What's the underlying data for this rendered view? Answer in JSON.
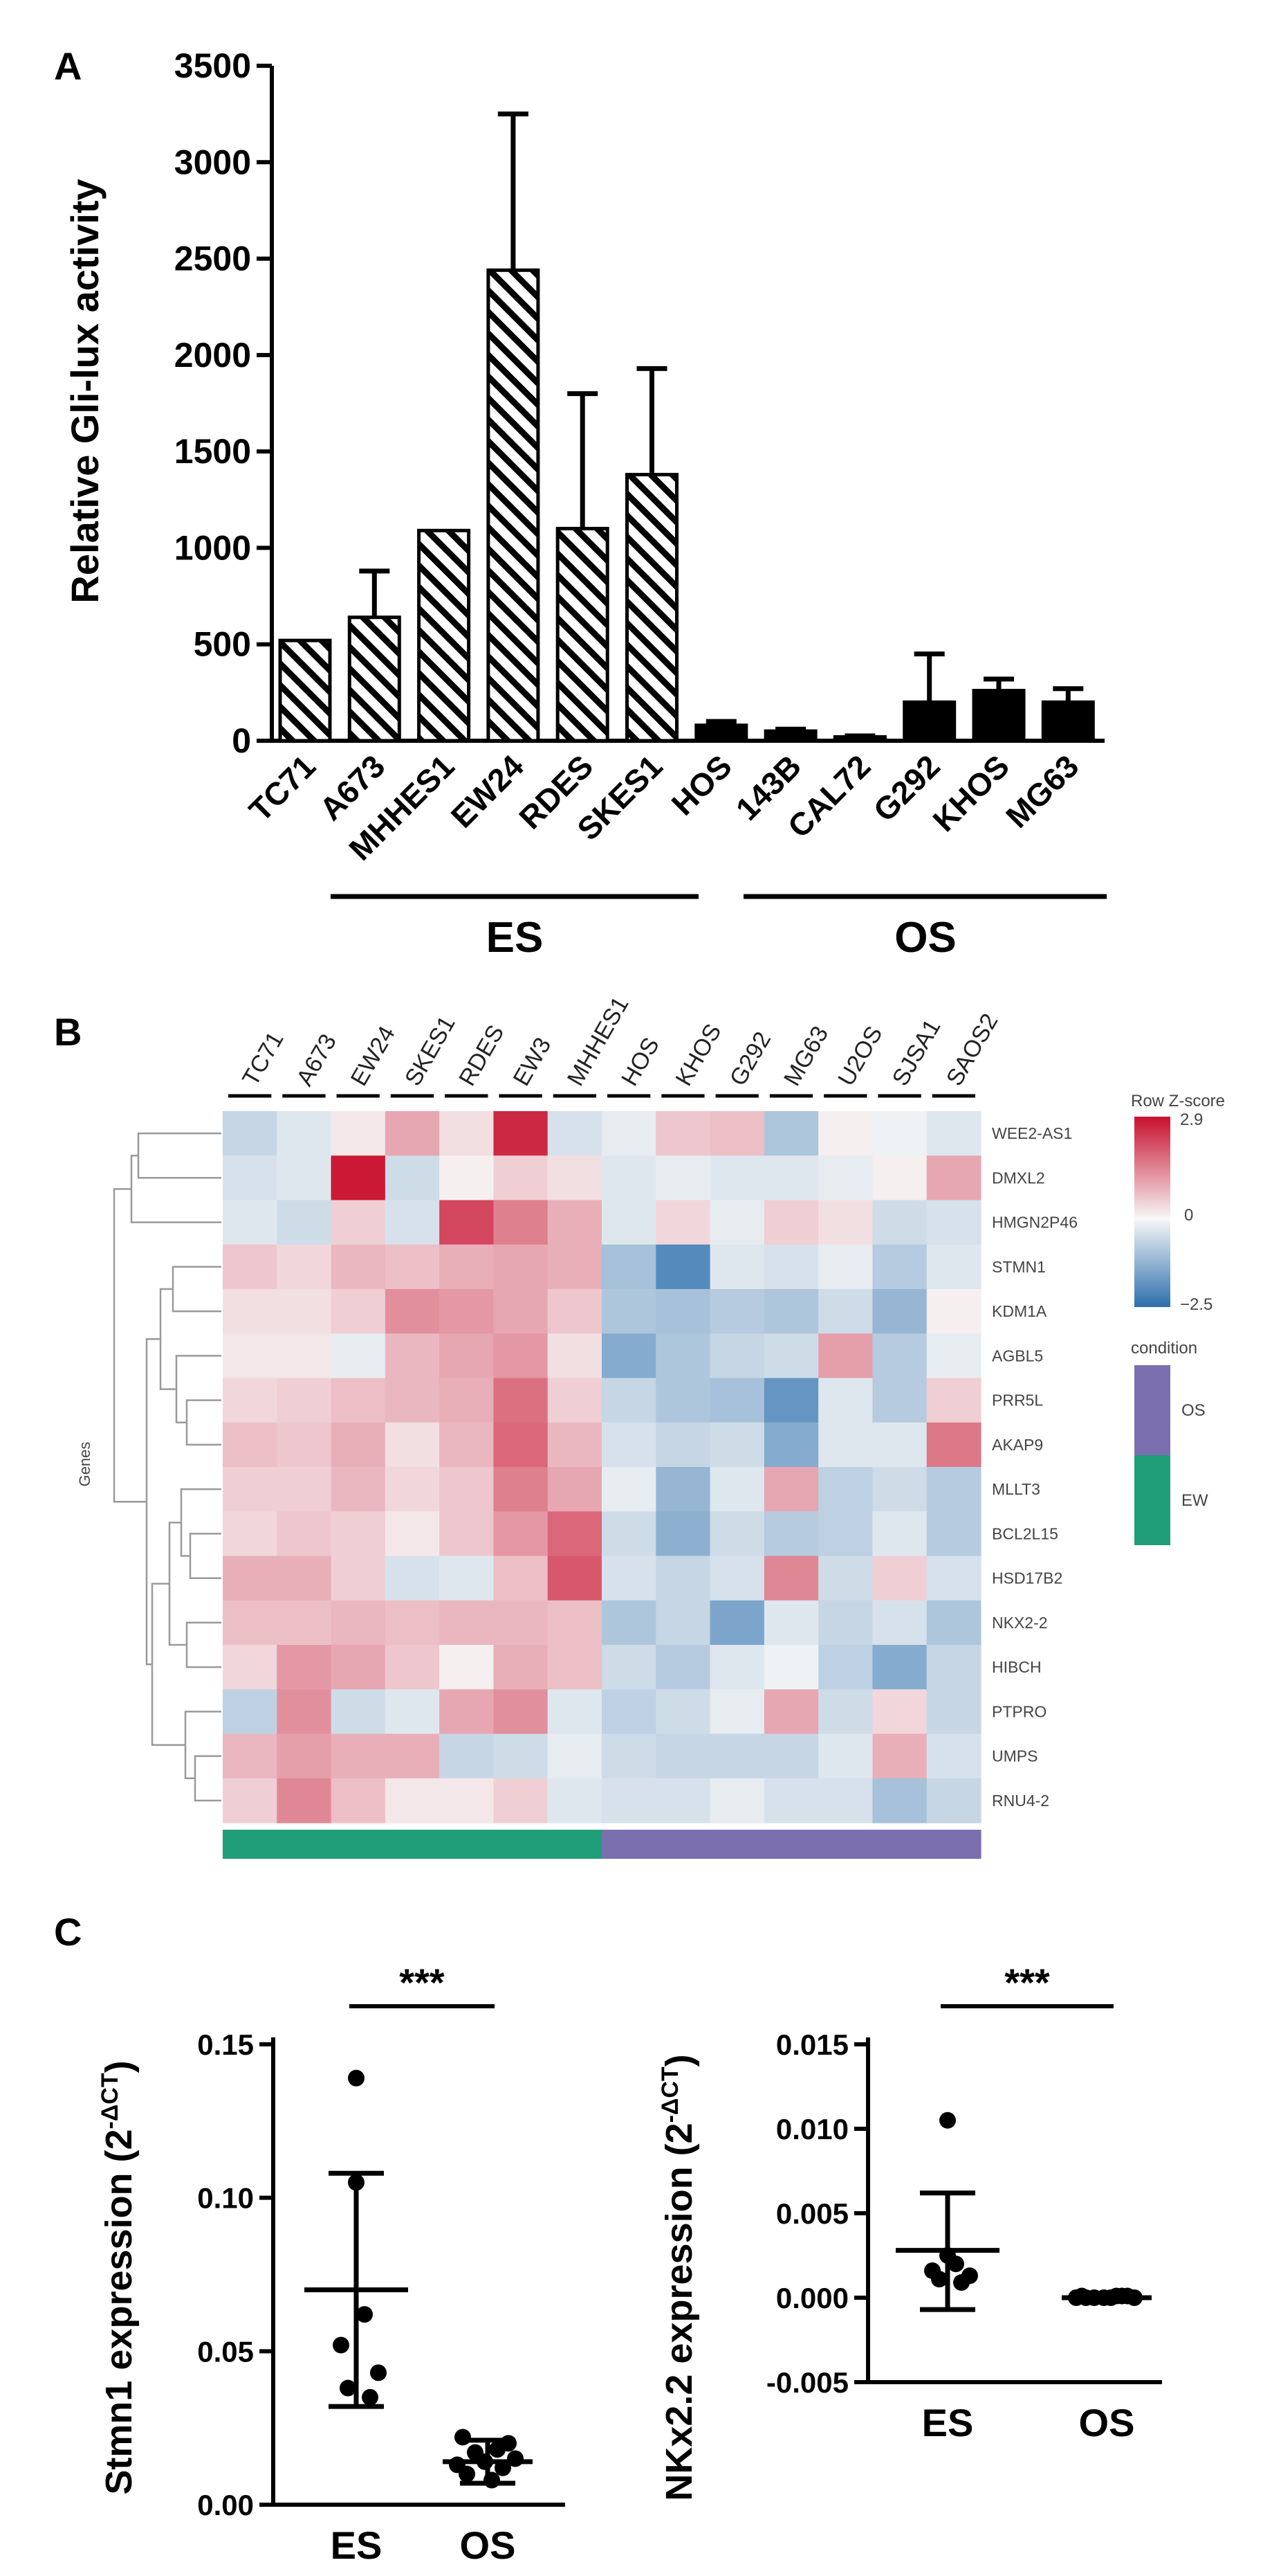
{
  "panel_labels": [
    "A",
    "B",
    "C"
  ],
  "chart_data": [
    {
      "type": "bar",
      "panel": "A",
      "title": "",
      "xlabel": "",
      "ylabel": "Relative Gli-lux activity",
      "ylim": [
        0,
        3500
      ],
      "yticks": [
        0,
        500,
        1000,
        1500,
        2000,
        2500,
        3000,
        3500
      ],
      "ytick_labels": [
        "0",
        "500",
        "1000",
        "1500",
        "2000",
        "2500",
        "3000",
        "3500"
      ],
      "categories": [
        "TC71",
        "A673",
        "MHHES1",
        "EW24",
        "RDES",
        "SKES1",
        "HOS",
        "143B",
        "CAL72",
        "G292",
        "KHOS",
        "MG63"
      ],
      "values": [
        520,
        640,
        1090,
        2440,
        1100,
        1380,
        80,
        50,
        20,
        200,
        260,
        200
      ],
      "error_upper": [
        0,
        240,
        0,
        810,
        700,
        550,
        20,
        10,
        5,
        250,
        60,
        70
      ],
      "group": [
        "ES",
        "ES",
        "ES",
        "ES",
        "ES",
        "ES",
        "OS",
        "OS",
        "OS",
        "OS",
        "OS",
        "OS"
      ],
      "group_labels": [
        "ES",
        "OS"
      ],
      "style": {
        "ES": "hatched",
        "OS": "solid"
      }
    },
    {
      "type": "heatmap",
      "panel": "B",
      "columns": [
        "TC71",
        "A673",
        "EW24",
        "SKES1",
        "RDES",
        "EW3",
        "MHHES1",
        "HOS",
        "KHOS",
        "G292",
        "MG63",
        "U2OS",
        "SJSA1",
        "SAOS2"
      ],
      "rows": [
        "WEE2-AS1",
        "DMXL2",
        "HMGN2P46",
        "STMN1",
        "KDM1A",
        "AGBL5",
        "PRR5L",
        "AKAP9",
        "MLLT3",
        "BCL2L15",
        "HSD17B2",
        "NKX2-2",
        "HIBCH",
        "PTPRO",
        "UMPS",
        "RNU4-2"
      ],
      "row_axis_label": "Genes",
      "values": [
        [
          -0.6,
          -0.3,
          0.2,
          1.0,
          0.3,
          2.6,
          -0.4,
          -0.2,
          0.6,
          0.7,
          -0.9,
          0.1,
          -0.1,
          -0.3
        ],
        [
          -0.4,
          -0.3,
          2.8,
          -0.5,
          0.1,
          0.5,
          0.3,
          -0.3,
          -0.2,
          -0.3,
          -0.3,
          -0.2,
          0.1,
          1.0
        ],
        [
          -0.3,
          -0.5,
          0.5,
          -0.4,
          2.2,
          1.5,
          0.9,
          -0.3,
          0.4,
          -0.2,
          0.5,
          0.3,
          -0.5,
          -0.4
        ],
        [
          0.6,
          0.4,
          0.8,
          0.7,
          0.9,
          1.0,
          0.9,
          -1.0,
          -2.0,
          -0.3,
          -0.4,
          -0.2,
          -0.8,
          -0.3
        ],
        [
          0.3,
          0.3,
          0.5,
          1.3,
          1.2,
          1.0,
          0.6,
          -0.9,
          -1.0,
          -0.8,
          -0.9,
          -0.5,
          -1.2,
          0.1
        ],
        [
          0.2,
          0.2,
          -0.2,
          0.8,
          1.0,
          1.2,
          0.3,
          -1.4,
          -0.9,
          -0.6,
          -0.5,
          1.1,
          -0.8,
          -0.2
        ],
        [
          0.4,
          0.5,
          0.7,
          0.8,
          0.9,
          1.7,
          0.5,
          -0.6,
          -0.9,
          -1.0,
          -1.8,
          -0.3,
          -0.8,
          0.5
        ],
        [
          0.7,
          0.6,
          0.9,
          0.3,
          0.8,
          1.8,
          0.8,
          -0.4,
          -0.6,
          -0.5,
          -1.4,
          -0.3,
          -0.3,
          1.6
        ],
        [
          0.5,
          0.5,
          0.8,
          0.4,
          0.6,
          1.5,
          1.0,
          -0.2,
          -1.2,
          -0.3,
          1.0,
          -0.7,
          -0.5,
          -0.8
        ],
        [
          0.4,
          0.6,
          0.5,
          0.2,
          0.6,
          1.2,
          1.8,
          -0.5,
          -1.3,
          -0.5,
          -0.8,
          -0.7,
          -0.3,
          -0.8
        ],
        [
          0.9,
          0.9,
          0.5,
          -0.4,
          -0.3,
          0.7,
          2.0,
          -0.4,
          -0.6,
          -0.4,
          1.4,
          -0.5,
          0.5,
          -0.4
        ],
        [
          0.7,
          0.7,
          0.8,
          0.7,
          0.8,
          0.8,
          0.7,
          -0.9,
          -0.6,
          -1.5,
          -0.3,
          -0.6,
          -0.4,
          -0.9
        ],
        [
          0.4,
          1.2,
          1.0,
          0.6,
          0.1,
          0.9,
          0.7,
          -0.5,
          -0.8,
          -0.3,
          -0.1,
          -0.7,
          -1.4,
          -0.6
        ],
        [
          -0.7,
          1.3,
          -0.5,
          -0.3,
          1.0,
          1.3,
          -0.3,
          -0.7,
          -0.5,
          -0.2,
          1.0,
          -0.5,
          0.4,
          -0.6
        ],
        [
          0.8,
          1.1,
          0.9,
          0.9,
          -0.6,
          -0.5,
          -0.2,
          -0.5,
          -0.6,
          -0.6,
          -0.6,
          -0.3,
          0.9,
          -0.4
        ],
        [
          0.5,
          1.4,
          0.7,
          0.2,
          0.2,
          0.5,
          -0.3,
          -0.4,
          -0.4,
          -0.2,
          -0.4,
          -0.4,
          -1.0,
          -0.6
        ]
      ],
      "color_scale": {
        "min": -2.5,
        "mid": 0,
        "max": 2.9,
        "low_color": "#2c6fad",
        "mid_color": "#f7f7f7",
        "high_color": "#c8102e"
      },
      "legend_title": "Row Z-score",
      "legend_tick_labels": [
        "2.9",
        "0",
        "−2.5"
      ],
      "condition_legend_title": "condition",
      "conditions": [
        {
          "name": "OS",
          "color": "#7b6fb0"
        },
        {
          "name": "EW",
          "color": "#1f9e78"
        }
      ],
      "column_condition": [
        "EW",
        "EW",
        "EW",
        "EW",
        "EW",
        "EW",
        "EW",
        "OS",
        "OS",
        "OS",
        "OS",
        "OS",
        "OS",
        "OS"
      ]
    },
    {
      "type": "scatter",
      "panel": "C",
      "subpanel": "left",
      "ylabel": "Stmn1 expression (2",
      "ylabel_sup": "-ΔCT",
      "ylabel_close": ")",
      "categories": [
        "ES",
        "OS"
      ],
      "ylim": [
        0,
        0.15
      ],
      "yticks": [
        0,
        0.05,
        0.1,
        0.15
      ],
      "ytick_labels": [
        "0.00",
        "0.05",
        "0.10",
        "0.15"
      ],
      "series": [
        {
          "name": "ES",
          "values": [
            0.139,
            0.105,
            0.062,
            0.052,
            0.043,
            0.038,
            0.035
          ],
          "mean": 0.07,
          "sd_low": 0.032,
          "sd_high": 0.108
        },
        {
          "name": "OS",
          "values": [
            0.022,
            0.02,
            0.017,
            0.015,
            0.014,
            0.012,
            0.01,
            0.008,
            0.018,
            0.013
          ],
          "mean": 0.014,
          "sd_low": 0.007,
          "sd_high": 0.021
        }
      ],
      "significance": "***"
    },
    {
      "type": "scatter",
      "panel": "C",
      "subpanel": "right",
      "ylabel": "NKx2.2 expression (2",
      "ylabel_sup": "-ΔCT",
      "ylabel_close": ")",
      "categories": [
        "ES",
        "OS"
      ],
      "ylim": [
        -0.005,
        0.015
      ],
      "yticks": [
        -0.005,
        0,
        0.005,
        0.01,
        0.015
      ],
      "ytick_labels": [
        "-0.005",
        "0.000",
        "0.005",
        "0.010",
        "0.015"
      ],
      "series": [
        {
          "name": "ES",
          "values": [
            0.0105,
            0.0025,
            0.002,
            0.0016,
            0.0013,
            0.0011,
            0.0009
          ],
          "mean": 0.0028,
          "sd_low": -0.0007,
          "sd_high": 0.0062
        },
        {
          "name": "OS",
          "values": [
            0.0001,
            0.0001,
            0.0,
            0.0,
            0.0,
            0.0001,
            0.0,
            0.0,
            0.0001,
            0.0
          ],
          "mean": 0.0,
          "sd_low": 0.0,
          "sd_high": 0.0
        }
      ],
      "significance": "***"
    }
  ]
}
